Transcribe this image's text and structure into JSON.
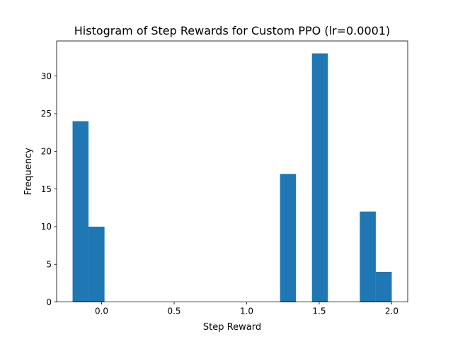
{
  "chart_data": {
    "type": "bar",
    "title": "Histogram of Step Rewards for Custom PPO (lr=0.0001)",
    "xlabel": "Step Reward",
    "ylabel": "Frequency",
    "xlim": [
      -0.31,
      2.11
    ],
    "ylim": [
      0,
      34.65
    ],
    "grid": false,
    "legend": "none",
    "bar_color": "#1f77b4",
    "bin_width": 0.11,
    "bins": [
      {
        "x0": -0.2,
        "x1": -0.09,
        "count": 24
      },
      {
        "x0": -0.09,
        "x1": 0.02,
        "count": 10
      },
      {
        "x0": 0.02,
        "x1": 0.13,
        "count": 0
      },
      {
        "x0": 0.13,
        "x1": 0.24,
        "count": 0
      },
      {
        "x0": 0.24,
        "x1": 0.35,
        "count": 0
      },
      {
        "x0": 0.35,
        "x1": 0.46,
        "count": 0
      },
      {
        "x0": 0.46,
        "x1": 0.57,
        "count": 0
      },
      {
        "x0": 0.57,
        "x1": 0.68,
        "count": 0
      },
      {
        "x0": 0.68,
        "x1": 0.79,
        "count": 0
      },
      {
        "x0": 0.79,
        "x1": 0.9,
        "count": 0
      },
      {
        "x0": 0.9,
        "x1": 1.01,
        "count": 0
      },
      {
        "x0": 1.01,
        "x1": 1.12,
        "count": 0
      },
      {
        "x0": 1.12,
        "x1": 1.23,
        "count": 0
      },
      {
        "x0": 1.23,
        "x1": 1.34,
        "count": 17
      },
      {
        "x0": 1.34,
        "x1": 1.45,
        "count": 0
      },
      {
        "x0": 1.45,
        "x1": 1.56,
        "count": 33
      },
      {
        "x0": 1.56,
        "x1": 1.67,
        "count": 0
      },
      {
        "x0": 1.67,
        "x1": 1.78,
        "count": 0
      },
      {
        "x0": 1.78,
        "x1": 1.89,
        "count": 12
      },
      {
        "x0": 1.89,
        "x1": 2.0,
        "count": 4
      }
    ],
    "x_ticks": [
      {
        "value": 0.0,
        "label": "0.0"
      },
      {
        "value": 0.5,
        "label": "0.5"
      },
      {
        "value": 1.0,
        "label": "1.0"
      },
      {
        "value": 1.5,
        "label": "1.5"
      },
      {
        "value": 2.0,
        "label": "2.0"
      }
    ],
    "y_ticks": [
      {
        "value": 0,
        "label": "0"
      },
      {
        "value": 5,
        "label": "5"
      },
      {
        "value": 10,
        "label": "10"
      },
      {
        "value": 15,
        "label": "15"
      },
      {
        "value": 20,
        "label": "20"
      },
      {
        "value": 25,
        "label": "25"
      },
      {
        "value": 30,
        "label": "30"
      }
    ]
  }
}
